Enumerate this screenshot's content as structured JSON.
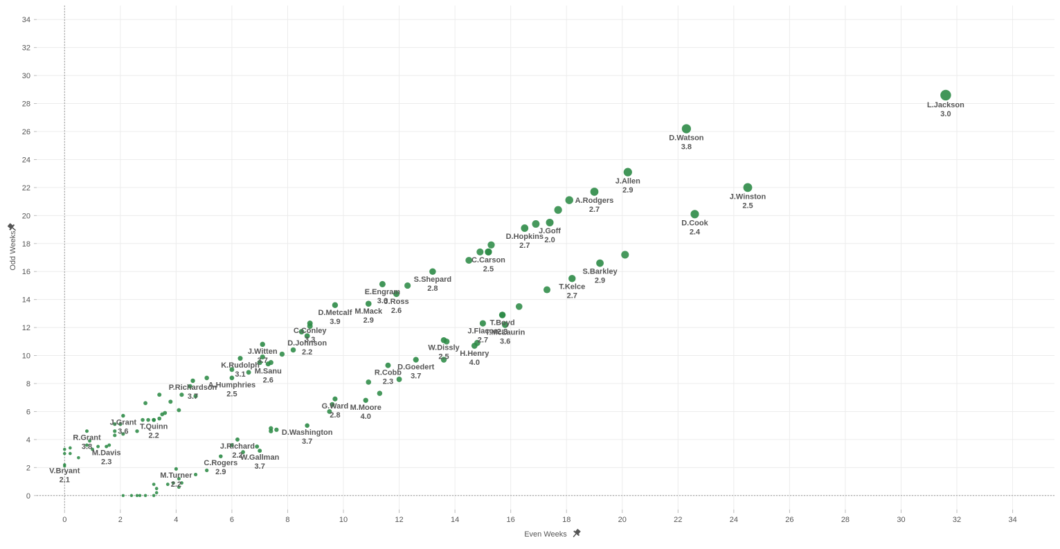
{
  "chart_data": {
    "type": "scatter",
    "xlabel": "Even Weeks",
    "ylabel": "Odd Weeks",
    "xlim": [
      -1,
      35.5
    ],
    "ylim": [
      -1,
      35
    ],
    "x_ticks": [
      0,
      2,
      4,
      6,
      8,
      10,
      12,
      14,
      16,
      18,
      20,
      22,
      24,
      26,
      28,
      30,
      32,
      34
    ],
    "y_ticks": [
      0,
      2,
      4,
      6,
      8,
      10,
      12,
      14,
      16,
      18,
      20,
      22,
      24,
      26,
      28,
      30,
      32,
      34
    ],
    "grid": true,
    "zero_lines": true,
    "colors": {
      "point": "#2e8b47",
      "grid": "#ececec",
      "zero_line": "#9a9a9a",
      "text": "#555555"
    },
    "icons": {
      "axis_pin": "pin-icon"
    },
    "labeled_points": [
      {
        "name": "L.Jackson",
        "value": "3.0",
        "x": 31.6,
        "y": 28.6
      },
      {
        "name": "D.Watson",
        "value": "3.8",
        "x": 22.3,
        "y": 26.2
      },
      {
        "name": "J.Allen",
        "value": "2.9",
        "x": 20.2,
        "y": 23.1
      },
      {
        "name": "J.Winston",
        "value": "2.5",
        "x": 24.5,
        "y": 22.0
      },
      {
        "name": "A.Rodgers",
        "value": "2.7",
        "x": 19.0,
        "y": 21.7
      },
      {
        "name": "D.Cook",
        "value": "2.4",
        "x": 22.6,
        "y": 20.1
      },
      {
        "name": "J.Goff",
        "value": "2.0",
        "x": 17.4,
        "y": 19.5
      },
      {
        "name": "D.Hopkins",
        "value": "2.7",
        "x": 16.5,
        "y": 19.1
      },
      {
        "name": "C.Carson",
        "value": "2.5",
        "x": 15.2,
        "y": 17.4
      },
      {
        "name": "S.Barkley",
        "value": "2.9",
        "x": 19.2,
        "y": 16.6
      },
      {
        "name": "S.Shepard",
        "value": "2.8",
        "x": 13.2,
        "y": 16.0
      },
      {
        "name": "E.Engram",
        "value": "3.6",
        "x": 11.4,
        "y": 15.1
      },
      {
        "name": "T.Kelce",
        "value": "2.7",
        "x": 18.2,
        "y": 15.5
      },
      {
        "name": "J.Ross",
        "value": "2.6",
        "x": 11.9,
        "y": 14.4
      },
      {
        "name": "T.Boyd",
        "value": "2.8",
        "x": 15.7,
        "y": 12.9
      },
      {
        "name": "M.Mack",
        "value": "2.9",
        "x": 10.9,
        "y": 13.7
      },
      {
        "name": "D.Metcalf",
        "value": "3.9",
        "x": 9.7,
        "y": 13.6
      },
      {
        "name": "C.Conley",
        "value": "3.3",
        "x": 8.8,
        "y": 12.3
      },
      {
        "name": "J.Flacco",
        "value": "2.7",
        "x": 15.0,
        "y": 12.3
      },
      {
        "name": "T.McLaurin",
        "value": "3.6",
        "x": 15.8,
        "y": 12.2
      },
      {
        "name": "J.Witten",
        "value": "3.7",
        "x": 7.1,
        "y": 10.8
      },
      {
        "name": "W.Dissly",
        "value": "2.5",
        "x": 13.6,
        "y": 11.1
      },
      {
        "name": "D.Johnson",
        "value": "2.2",
        "x": 8.7,
        "y": 11.4
      },
      {
        "name": "H.Henry",
        "value": "4.0",
        "x": 14.7,
        "y": 10.7
      },
      {
        "name": "K.Rudolph",
        "value": "3.1",
        "x": 6.3,
        "y": 9.8
      },
      {
        "name": "R.Cobb",
        "value": "2.3",
        "x": 11.6,
        "y": 9.3
      },
      {
        "name": "M.Sanu",
        "value": "2.6",
        "x": 7.3,
        "y": 9.4
      },
      {
        "name": "D.Goedert",
        "value": "3.7",
        "x": 12.6,
        "y": 9.7
      },
      {
        "name": "P.Richardson",
        "value": "3.7",
        "x": 4.6,
        "y": 8.2
      },
      {
        "name": "A.Humphries",
        "value": "2.5",
        "x": 6.0,
        "y": 8.4
      },
      {
        "name": "J.Grant",
        "value": "3.6",
        "x": 2.1,
        "y": 5.7
      },
      {
        "name": "G.Ward",
        "value": "2.8",
        "x": 9.7,
        "y": 6.9
      },
      {
        "name": "M.Moore",
        "value": "4.0",
        "x": 10.8,
        "y": 6.8
      },
      {
        "name": "R.Grant",
        "value": "3.8",
        "x": 0.8,
        "y": 4.6
      },
      {
        "name": "T.Quinn",
        "value": "2.2",
        "x": 3.2,
        "y": 5.4
      },
      {
        "name": "J.Richard",
        "value": "2.2",
        "x": 6.2,
        "y": 4.0
      },
      {
        "name": "D.Washington",
        "value": "3.7",
        "x": 8.7,
        "y": 5.0
      },
      {
        "name": "M.Davis",
        "value": "2.3",
        "x": 1.5,
        "y": 3.5
      },
      {
        "name": "C.Rogers",
        "value": "2.9",
        "x": 5.6,
        "y": 2.8
      },
      {
        "name": "W.Gallman",
        "value": "3.7",
        "x": 7.0,
        "y": 3.2
      },
      {
        "name": "M.Turner",
        "value": "2.2",
        "x": 4.0,
        "y": 1.9
      },
      {
        "name": "V.Bryant",
        "value": "2.1",
        "x": 0.0,
        "y": 2.2
      }
    ],
    "other_points": [
      [
        14.5,
        16.8
      ],
      [
        14.9,
        17.4
      ],
      [
        15.2,
        17.4
      ],
      [
        15.3,
        17.9
      ],
      [
        16.9,
        19.4
      ],
      [
        17.7,
        20.4
      ],
      [
        18.1,
        21.1
      ],
      [
        20.1,
        17.2
      ],
      [
        17.3,
        14.7
      ],
      [
        12.3,
        15.0
      ],
      [
        16.3,
        13.5
      ],
      [
        15.7,
        12.9
      ],
      [
        13.7,
        11.0
      ],
      [
        14.8,
        10.9
      ],
      [
        13.6,
        9.7
      ],
      [
        11.3,
        7.3
      ],
      [
        12.0,
        8.3
      ],
      [
        10.9,
        8.1
      ],
      [
        9.5,
        6.0
      ],
      [
        9.6,
        6.5
      ],
      [
        8.5,
        11.7
      ],
      [
        8.8,
        12.1
      ],
      [
        8.2,
        10.4
      ],
      [
        7.8,
        10.1
      ],
      [
        7.0,
        9.5
      ],
      [
        7.1,
        9.9
      ],
      [
        7.4,
        9.5
      ],
      [
        6.6,
        8.8
      ],
      [
        6.0,
        9.0
      ],
      [
        5.1,
        8.4
      ],
      [
        4.5,
        7.8
      ],
      [
        4.7,
        7.1
      ],
      [
        4.2,
        7.2
      ],
      [
        3.8,
        6.7
      ],
      [
        3.4,
        7.2
      ],
      [
        4.1,
        6.1
      ],
      [
        3.5,
        5.8
      ],
      [
        3.6,
        5.9
      ],
      [
        3.4,
        5.5
      ],
      [
        3.2,
        5.4
      ],
      [
        3.0,
        5.4
      ],
      [
        2.8,
        5.4
      ],
      [
        2.6,
        4.6
      ],
      [
        2.9,
        6.6
      ],
      [
        2.0,
        5.1
      ],
      [
        1.8,
        5.1
      ],
      [
        1.8,
        4.6
      ],
      [
        2.1,
        4.4
      ],
      [
        1.8,
        4.3
      ],
      [
        1.6,
        3.6
      ],
      [
        1.2,
        3.5
      ],
      [
        1.0,
        3.3
      ],
      [
        0.8,
        3.6
      ],
      [
        0.9,
        3.9
      ],
      [
        0.5,
        2.7
      ],
      [
        0.2,
        3.4
      ],
      [
        0.2,
        3.0
      ],
      [
        0.0,
        3.3
      ],
      [
        0.0,
        3.0
      ],
      [
        0.0,
        2.1
      ],
      [
        7.4,
        4.8
      ],
      [
        7.6,
        4.7
      ],
      [
        7.4,
        4.6
      ],
      [
        6.4,
        3.1
      ],
      [
        6.0,
        3.6
      ],
      [
        6.9,
        3.5
      ],
      [
        5.1,
        1.8
      ],
      [
        4.7,
        1.5
      ],
      [
        4.1,
        1.2
      ],
      [
        4.2,
        0.9
      ],
      [
        4.1,
        0.6
      ],
      [
        3.7,
        0.8
      ],
      [
        3.9,
        0.9
      ],
      [
        3.3,
        0.5
      ],
      [
        3.2,
        0.8
      ],
      [
        3.3,
        0.2
      ],
      [
        3.2,
        0.0
      ],
      [
        2.9,
        0.0
      ],
      [
        2.7,
        0.0
      ],
      [
        2.6,
        0.0
      ],
      [
        2.4,
        0.0
      ],
      [
        2.1,
        0.0
      ]
    ]
  }
}
